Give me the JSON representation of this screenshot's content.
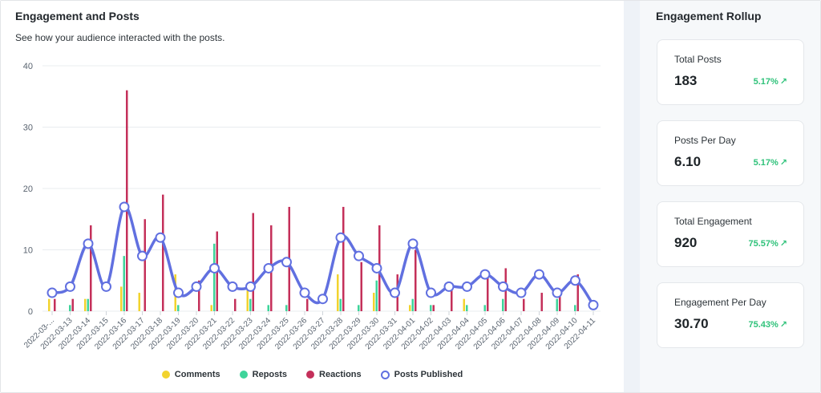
{
  "header": {
    "title": "Engagement and Posts",
    "subtitle": "See how your audience interacted with the posts."
  },
  "legend": {
    "comments": "Comments",
    "reposts": "Reposts",
    "reactions": "Reactions",
    "posts": "Posts Published"
  },
  "colors": {
    "comments": "#f2d32e",
    "reposts": "#3ed49a",
    "reactions": "#c4305a",
    "posts": "#6170e0",
    "grid": "#e9ecef",
    "axis_text": "#5a6470",
    "positive": "#2fc27a"
  },
  "rollup": {
    "title": "Engagement Rollup",
    "cards": [
      {
        "label": "Total Posts",
        "value": "183",
        "delta": "5.17%",
        "icon": "arrow-up-right-icon"
      },
      {
        "label": "Posts Per Day",
        "value": "6.10",
        "delta": "5.17%",
        "icon": "arrow-up-right-icon"
      },
      {
        "label": "Total Engagement",
        "value": "920",
        "delta": "75.57%",
        "icon": "arrow-up-right-icon"
      },
      {
        "label": "Engagement Per Day",
        "value": "30.70",
        "delta": "75.43%",
        "icon": "arrow-up-right-icon"
      }
    ]
  },
  "chart_data": {
    "type": "bar",
    "y_ticks": [
      0,
      10,
      20,
      30,
      40
    ],
    "ylim": [
      0,
      40
    ],
    "x_tick_labels": [
      "2022-03-...",
      "2022-03-13",
      "2022-03-14",
      "2022-03-15",
      "2022-03-16",
      "2022-03-17",
      "2022-03-18",
      "2022-03-19",
      "2022-03-20",
      "2022-03-21",
      "2022-03-22",
      "2022-03-23",
      "2022-03-24",
      "2022-03-25",
      "2022-03-26",
      "2022-03-27",
      "2022-03-28",
      "2022-03-29",
      "2022-03-30",
      "2022-03-31",
      "2022-04-01",
      "2022-04-02",
      "2022-04-03",
      "2022-04-04",
      "2022-04-05",
      "2022-04-06",
      "2022-04-07",
      "2022-04-08",
      "2022-04-09",
      "2022-04-10",
      "2022-04-11"
    ],
    "grid": true,
    "legend_position": "bottom-center",
    "series": [
      {
        "name": "Comments",
        "type": "bar",
        "values": [
          2,
          0,
          2,
          0,
          4,
          3,
          0,
          6,
          0,
          1,
          0,
          4,
          0,
          0,
          0,
          0,
          6,
          0,
          3,
          0,
          1,
          0,
          0,
          2,
          0,
          0,
          0,
          0,
          0,
          0,
          0
        ]
      },
      {
        "name": "Reposts",
        "type": "bar",
        "values": [
          0,
          1,
          2,
          0,
          9,
          0,
          0,
          1,
          0,
          11,
          0,
          2,
          1,
          1,
          0,
          0,
          2,
          1,
          5,
          0,
          2,
          1,
          0,
          1,
          1,
          2,
          0,
          0,
          2,
          1,
          0
        ]
      },
      {
        "name": "Reactions",
        "type": "bar",
        "values": [
          2,
          2,
          14,
          0,
          36,
          15,
          19,
          0,
          5,
          13,
          2,
          16,
          14,
          17,
          2,
          0,
          17,
          8,
          14,
          6,
          10,
          1,
          4,
          0,
          6,
          7,
          2,
          3,
          3,
          6,
          0
        ]
      },
      {
        "name": "Posts Published",
        "type": "line",
        "values": [
          3,
          4,
          11,
          4,
          17,
          9,
          12,
          3,
          4,
          7,
          4,
          4,
          7,
          8,
          3,
          2,
          12,
          9,
          7,
          3,
          11,
          3,
          4,
          4,
          6,
          4,
          3,
          6,
          3,
          5,
          1
        ]
      }
    ]
  }
}
